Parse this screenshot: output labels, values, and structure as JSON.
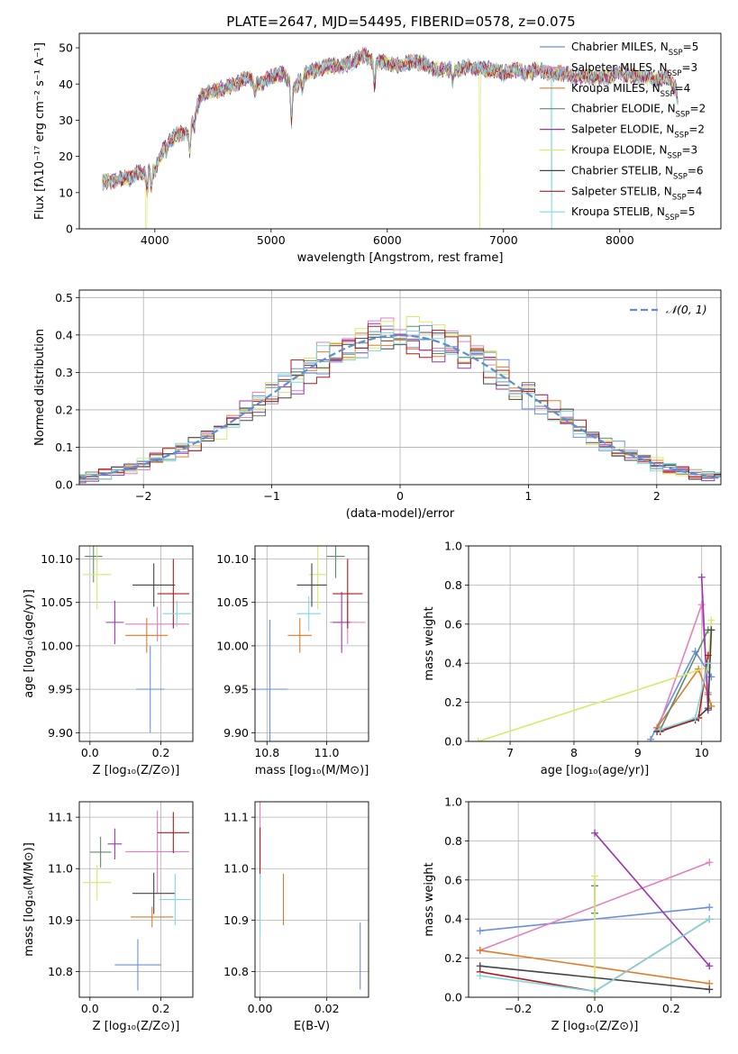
{
  "figure_title": "PLATE=2647, MJD=54495, FIBERID=0578, z=0.075",
  "colors": {
    "chabrier_miles": "#6a8fdf",
    "salpeter_miles": "#e47fc0",
    "kroupa_miles": "#e07b2a",
    "chabrier_elodie": "#5f8d6b",
    "salpeter_elodie": "#9a35b0",
    "kroupa_elodie": "#d9e96a",
    "chabrier_stelib": "#444444",
    "salpeter_stelib": "#b21a1a",
    "kroupa_stelib": "#7fd7df",
    "normal": "#5b8fd6"
  },
  "chart_data": [
    {
      "id": "spectrum",
      "type": "line",
      "xlabel": "wavelength [Angstrom, rest frame]",
      "ylabel": "Flux [fλ10⁻¹⁷ erg cm⁻² s⁻¹ A⁻¹]",
      "xlim": [
        3350,
        8870
      ],
      "ylim": [
        0,
        54
      ],
      "xticks": [
        4000,
        5000,
        6000,
        7000,
        8000
      ],
      "yticks": [
        0,
        10,
        20,
        30,
        40,
        50
      ],
      "legend_position": "right",
      "series": [
        {
          "name": "Chabrier MILES, N_SSP=5",
          "legend": [
            "Chabrier MILES, N",
            "SSP",
            "=5"
          ]
        },
        {
          "name": "Salpeter MILES, N_SSP=3",
          "legend": [
            "Salpeter MILES, N",
            "SSP",
            "=3"
          ]
        },
        {
          "name": "Kroupa MILES, N_SSP=4",
          "legend": [
            "Kroupa MILES, N",
            "SSP",
            "=4"
          ]
        },
        {
          "name": "Chabrier ELODIE, N_SSP=2",
          "legend": [
            "Chabrier ELODIE, N",
            "SSP",
            "=2"
          ]
        },
        {
          "name": "Salpeter ELODIE, N_SSP=2",
          "legend": [
            "Salpeter ELODIE, N",
            "SSP",
            "=2"
          ]
        },
        {
          "name": "Kroupa ELODIE, N_SSP=3",
          "legend": [
            "Kroupa ELODIE, N",
            "SSP",
            "=3"
          ]
        },
        {
          "name": "Chabrier STELIB, N_SSP=6",
          "legend": [
            "Chabrier STELIB, N",
            "SSP",
            "=6"
          ]
        },
        {
          "name": "Salpeter STELIB, N_SSP=4",
          "legend": [
            "Salpeter STELIB, N",
            "SSP",
            "=4"
          ]
        },
        {
          "name": "Kroupa STELIB, N_SSP=5",
          "legend": [
            "Kroupa STELIB, N",
            "SSP",
            "=5"
          ]
        }
      ],
      "continuum": [
        [
          3550,
          13
        ],
        [
          3650,
          13
        ],
        [
          3700,
          14
        ],
        [
          3800,
          14
        ],
        [
          3850,
          16
        ],
        [
          3900,
          15
        ],
        [
          3950,
          17
        ],
        [
          4000,
          16
        ],
        [
          4050,
          20
        ],
        [
          4100,
          24
        ],
        [
          4150,
          25
        ],
        [
          4200,
          26
        ],
        [
          4300,
          27
        ],
        [
          4350,
          32
        ],
        [
          4400,
          37
        ],
        [
          4500,
          38
        ],
        [
          4600,
          39
        ],
        [
          4700,
          40
        ],
        [
          4800,
          42
        ],
        [
          4900,
          40
        ],
        [
          5000,
          42
        ],
        [
          5100,
          43
        ],
        [
          5200,
          39
        ],
        [
          5300,
          43
        ],
        [
          5400,
          44
        ],
        [
          5500,
          45
        ],
        [
          5600,
          45
        ],
        [
          5700,
          46
        ],
        [
          5800,
          48
        ],
        [
          5900,
          46
        ],
        [
          6000,
          46
        ],
        [
          6100,
          45
        ],
        [
          6200,
          46
        ],
        [
          6300,
          46
        ],
        [
          6400,
          44
        ],
        [
          6500,
          44
        ],
        [
          6600,
          44
        ],
        [
          6700,
          45
        ],
        [
          6800,
          44
        ],
        [
          6900,
          44
        ],
        [
          7000,
          43
        ],
        [
          7100,
          44
        ],
        [
          7200,
          43
        ],
        [
          7300,
          44
        ],
        [
          7400,
          43
        ],
        [
          7500,
          43
        ],
        [
          7600,
          42
        ],
        [
          7700,
          42
        ],
        [
          7800,
          42
        ],
        [
          7900,
          42
        ],
        [
          8000,
          43
        ],
        [
          8100,
          42
        ],
        [
          8200,
          42
        ],
        [
          8300,
          41
        ],
        [
          8400,
          42
        ],
        [
          8500,
          38
        ]
      ],
      "absorption_lines": [
        [
          3934,
          -6
        ],
        [
          3969,
          -5
        ],
        [
          4102,
          -3
        ],
        [
          4300,
          -5
        ],
        [
          4340,
          -3
        ],
        [
          4861,
          -3
        ],
        [
          5175,
          -10
        ],
        [
          5270,
          -3
        ],
        [
          5890,
          -7
        ],
        [
          6563,
          -3
        ],
        [
          8498,
          -3
        ],
        [
          8542,
          -5
        ]
      ],
      "spikes": [
        {
          "x": 3925,
          "series": 5
        },
        {
          "x": 6795,
          "series": 5
        },
        {
          "x": 7415,
          "series": 8
        }
      ]
    },
    {
      "id": "residuals",
      "type": "line",
      "xlabel": "(data-model)/error",
      "ylabel": "Normed distribution",
      "xlim": [
        -2.5,
        2.5
      ],
      "ylim": [
        0,
        0.52
      ],
      "xticks": [
        -2,
        -1,
        0,
        1,
        2
      ],
      "yticks": [
        0.0,
        0.1,
        0.2,
        0.3,
        0.4,
        0.5
      ],
      "grid": true,
      "legend_position": "top-right",
      "legend_label": "𝒩(0, 1)",
      "bin_width": 0.1
    },
    {
      "id": "age-vs-Z",
      "type": "scatter",
      "xlabel": "Z [log₁₀(Z/Z⊙)]",
      "ylabel": "age  [log₁₀(age/yr)]",
      "xlim": [
        -0.03,
        0.29
      ],
      "ylim": [
        9.89,
        10.115
      ],
      "xticks": [
        0.0,
        0.2
      ],
      "yticks": [
        9.9,
        9.95,
        10.0,
        10.05,
        10.1
      ],
      "grid": true,
      "points": [
        {
          "series": 0,
          "x": 0.17,
          "y": 9.95,
          "ex": 0.04,
          "ey": 0.05
        },
        {
          "series": 1,
          "x": 0.19,
          "y": 10.025,
          "ex": 0.09,
          "ey": 0.02
        },
        {
          "series": 2,
          "x": 0.16,
          "y": 10.012,
          "ex": 0.06,
          "ey": 0.02
        },
        {
          "series": 3,
          "x": 0.01,
          "y": 10.103,
          "ex": 0.025,
          "ey": 0.03
        },
        {
          "series": 4,
          "x": 0.07,
          "y": 10.027,
          "ex": 0.025,
          "ey": 0.025
        },
        {
          "series": 5,
          "x": 0.02,
          "y": 10.082,
          "ex": 0.04,
          "ey": 0.04
        },
        {
          "series": 6,
          "x": 0.18,
          "y": 10.07,
          "ex": 0.06,
          "ey": 0.025
        },
        {
          "series": 7,
          "x": 0.235,
          "y": 10.06,
          "ex": 0.045,
          "ey": 0.04
        },
        {
          "series": 8,
          "x": 0.245,
          "y": 10.037,
          "ex": 0.04,
          "ey": 0.015
        }
      ]
    },
    {
      "id": "age-vs-mass",
      "type": "scatter",
      "xlabel": "mass [log₁₀(M/M⊙)]",
      "ylabel": "",
      "xlim": [
        10.76,
        11.14
      ],
      "ylim": [
        9.89,
        10.115
      ],
      "xticks": [
        10.8,
        11.0
      ],
      "yticks": [
        9.9,
        9.95,
        10.0,
        10.05,
        10.1
      ],
      "grid": true,
      "points": [
        {
          "series": 0,
          "x": 10.81,
          "y": 9.95,
          "ex": 0.06,
          "ey": 0.08
        },
        {
          "series": 1,
          "x": 11.07,
          "y": 10.027,
          "ex": 0.06,
          "ey": 0.025
        },
        {
          "series": 2,
          "x": 10.91,
          "y": 10.012,
          "ex": 0.04,
          "ey": 0.02
        },
        {
          "series": 3,
          "x": 11.03,
          "y": 10.103,
          "ex": 0.03,
          "ey": 0.025
        },
        {
          "series": 4,
          "x": 11.05,
          "y": 10.027,
          "ex": 0.03,
          "ey": 0.035
        },
        {
          "series": 5,
          "x": 10.97,
          "y": 10.082,
          "ex": 0.03,
          "ey": 0.04
        },
        {
          "series": 6,
          "x": 10.95,
          "y": 10.07,
          "ex": 0.05,
          "ey": 0.025
        },
        {
          "series": 7,
          "x": 11.07,
          "y": 10.06,
          "ex": 0.05,
          "ey": 0.04
        },
        {
          "series": 8,
          "x": 10.94,
          "y": 10.037,
          "ex": 0.04,
          "ey": 0.02
        }
      ]
    },
    {
      "id": "massweight-vs-age",
      "type": "line",
      "xlabel": "age  [log₁₀(age/yr)]",
      "ylabel": "mass weight",
      "xlim": [
        6.35,
        10.3
      ],
      "ylim": [
        0.0,
        1.0
      ],
      "xticks": [
        7,
        8,
        9,
        10
      ],
      "yticks": [
        0.0,
        0.2,
        0.4,
        0.6,
        0.8,
        1.0
      ],
      "grid": true,
      "series": [
        {
          "series": 0,
          "points": [
            [
              9.2,
              0.01
            ],
            [
              9.9,
              0.46
            ],
            [
              10.15,
              0.33
            ]
          ]
        },
        {
          "series": 1,
          "points": [
            [
              9.3,
              0.05
            ],
            [
              10.0,
              0.7
            ],
            [
              10.1,
              0.25
            ]
          ]
        },
        {
          "series": 2,
          "points": [
            [
              9.3,
              0.07
            ],
            [
              9.95,
              0.37
            ],
            [
              10.1,
              0.24
            ],
            [
              10.15,
              0.18
            ]
          ]
        },
        {
          "series": 3,
          "points": [
            [
              9.35,
              0.06
            ],
            [
              10.1,
              0.57
            ]
          ]
        },
        {
          "series": 4,
          "points": [
            [
              10.0,
              0.84
            ],
            [
              10.1,
              0.16
            ]
          ]
        },
        {
          "series": 5,
          "points": [
            [
              6.5,
              0.0
            ],
            [
              10.1,
              0.38
            ],
            [
              10.15,
              0.62
            ]
          ]
        },
        {
          "series": 6,
          "points": [
            [
              9.3,
              0.05
            ],
            [
              9.9,
              0.11
            ],
            [
              10.1,
              0.17
            ],
            [
              10.15,
              0.57
            ]
          ]
        },
        {
          "series": 7,
          "points": [
            [
              9.35,
              0.05
            ],
            [
              9.95,
              0.12
            ],
            [
              10.1,
              0.44
            ]
          ]
        },
        {
          "series": 8,
          "points": [
            [
              9.35,
              0.06
            ],
            [
              9.9,
              0.12
            ],
            [
              10.1,
              0.4
            ]
          ]
        }
      ]
    },
    {
      "id": "mass-vs-Z",
      "type": "scatter",
      "xlabel": "Z [log₁₀(Z/Z⊙)]",
      "ylabel": "mass [log₁₀(M/M⊙)]",
      "xlim": [
        -0.03,
        0.29
      ],
      "ylim": [
        10.75,
        11.13
      ],
      "xticks": [
        0.0,
        0.2
      ],
      "yticks": [
        10.8,
        10.9,
        11.0,
        11.1
      ],
      "grid": true,
      "points": [
        {
          "series": 0,
          "x": 0.135,
          "y": 10.813,
          "ex": 0.065,
          "ey": 0.05
        },
        {
          "series": 1,
          "x": 0.19,
          "y": 11.033,
          "ex": 0.09,
          "ey": 0.08
        },
        {
          "series": 2,
          "x": 0.175,
          "y": 10.906,
          "ex": 0.06,
          "ey": 0.02
        },
        {
          "series": 3,
          "x": 0.03,
          "y": 11.032,
          "ex": 0.03,
          "ey": 0.03
        },
        {
          "series": 4,
          "x": 0.07,
          "y": 11.048,
          "ex": 0.02,
          "ey": 0.03
        },
        {
          "series": 5,
          "x": 0.02,
          "y": 10.973,
          "ex": 0.04,
          "ey": 0.035
        },
        {
          "series": 6,
          "x": 0.18,
          "y": 10.952,
          "ex": 0.06,
          "ey": 0.04
        },
        {
          "series": 7,
          "x": 0.235,
          "y": 11.07,
          "ex": 0.045,
          "ey": 0.04
        },
        {
          "series": 8,
          "x": 0.24,
          "y": 10.94,
          "ex": 0.045,
          "ey": 0.05
        }
      ]
    },
    {
      "id": "mass-vs-EBV",
      "type": "scatter",
      "xlabel": "E(B-V)",
      "ylabel": "",
      "xlim": [
        -0.0015,
        0.0325
      ],
      "ylim": [
        10.75,
        11.13
      ],
      "xticks": [
        0.0,
        0.02
      ],
      "yticks": [
        10.8,
        10.9,
        11.0,
        11.1
      ],
      "grid": true,
      "points": [
        {
          "series": 0,
          "x": 0.03,
          "y": 10.83,
          "ex": 0,
          "ey": 0.065
        },
        {
          "series": 1,
          "x": 0.0,
          "y": 11.07,
          "ex": 0,
          "ey": 0.06
        },
        {
          "series": 2,
          "x": 0.007,
          "y": 10.94,
          "ex": 0,
          "ey": 0.05
        },
        {
          "series": 7,
          "x": 0.0,
          "y": 11.03,
          "ex": 0,
          "ey": 0.05
        },
        {
          "series": 8,
          "x": 0.0,
          "y": 10.93,
          "ex": 0,
          "ey": 0.06
        }
      ]
    },
    {
      "id": "massweight-vs-Z",
      "type": "line",
      "xlabel": "Z [log₁₀(Z/Z⊙)]",
      "ylabel": "mass weight",
      "xlim": [
        -0.33,
        0.33
      ],
      "ylim": [
        0.0,
        1.0
      ],
      "xticks": [
        -0.2,
        0.0,
        0.2
      ],
      "yticks": [
        0.0,
        0.2,
        0.4,
        0.6,
        0.8,
        1.0
      ],
      "grid": true,
      "series": [
        {
          "series": 0,
          "points": [
            [
              -0.3,
              0.34
            ],
            [
              0.3,
              0.46
            ]
          ]
        },
        {
          "series": 1,
          "points": [
            [
              -0.3,
              0.24
            ],
            [
              0.3,
              0.69
            ]
          ]
        },
        {
          "series": 2,
          "points": [
            [
              -0.3,
              0.24
            ],
            [
              0.3,
              0.07
            ]
          ]
        },
        {
          "series": 3,
          "points": [
            [
              0.0,
              0.57
            ],
            [
              0.0,
              0.43
            ]
          ]
        },
        {
          "series": 4,
          "points": [
            [
              0.0,
              0.84
            ],
            [
              0.3,
              0.16
            ]
          ]
        },
        {
          "series": 5,
          "points": [
            [
              0.0,
              0.62
            ],
            [
              0.0,
              0.0
            ]
          ]
        },
        {
          "series": 6,
          "points": [
            [
              -0.3,
              0.16
            ],
            [
              0.3,
              0.04
            ]
          ]
        },
        {
          "series": 7,
          "points": [
            [
              -0.3,
              0.13
            ],
            [
              0.0,
              0.03
            ],
            [
              0.3,
              0.4
            ]
          ]
        },
        {
          "series": 8,
          "points": [
            [
              -0.3,
              0.11
            ],
            [
              0.0,
              0.03
            ],
            [
              0.3,
              0.4
            ]
          ]
        }
      ]
    }
  ]
}
